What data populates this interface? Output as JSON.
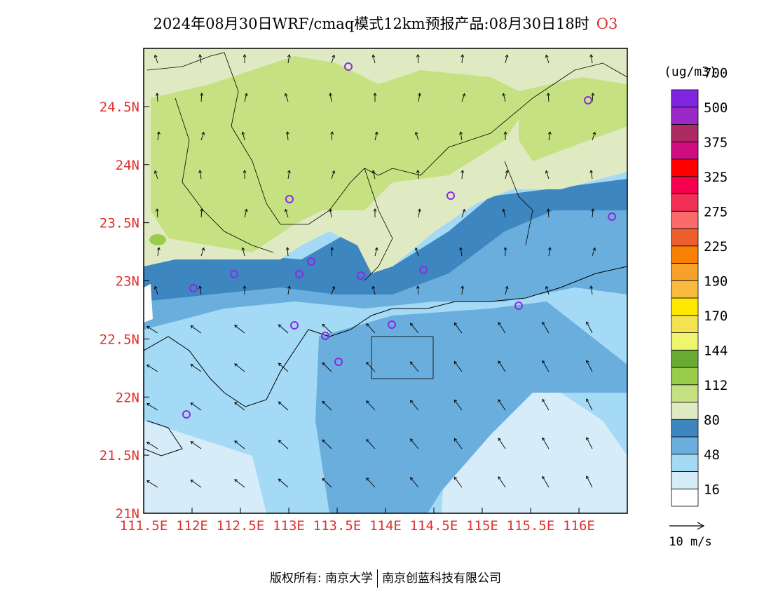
{
  "header": {
    "title": "2024年08月30日WRF/cmaq模式12km预报产品:08月30日18时",
    "species": "O3"
  },
  "map": {
    "x_ticks": [
      "111.5E",
      "112E",
      "112.5E",
      "113E",
      "113.5E",
      "114E",
      "114.5E",
      "115E",
      "115.5E",
      "116E"
    ],
    "y_ticks": [
      "21N",
      "21.5N",
      "22N",
      "22.5N",
      "23N",
      "23.5N",
      "24N",
      "24.5N"
    ],
    "lon_range": [
      111.5,
      116.5
    ],
    "lat_range": [
      21,
      25
    ],
    "tick_color": "#e0302c"
  },
  "legend": {
    "unit": "(ug/m3)",
    "levels": [
      "16",
      "48",
      "80",
      "112",
      "144",
      "170",
      "190",
      "225",
      "275",
      "325",
      "375",
      "500",
      "700"
    ],
    "colors": [
      "#ffffff",
      "#d7ecf9",
      "#a4daf5",
      "#6aaedd",
      "#3e86c0",
      "#dfeac3",
      "#c5e181",
      "#98cc4a",
      "#6aab34",
      "#eef66e",
      "#f4e250",
      "#ffe800",
      "#f8ba3f",
      "#f8a12a",
      "#fa7f05",
      "#ee5e2f",
      "#fb6a6a",
      "#f22f57",
      "#f70050",
      "#ff0000",
      "#cf0c80",
      "#ad2b62",
      "#9a29c8",
      "#7f25e0"
    ],
    "wind_scale": "10 m/s"
  },
  "footer": {
    "copyright": "版权所有: 南京大学",
    "company": "南京创蓝科技有限公司"
  }
}
